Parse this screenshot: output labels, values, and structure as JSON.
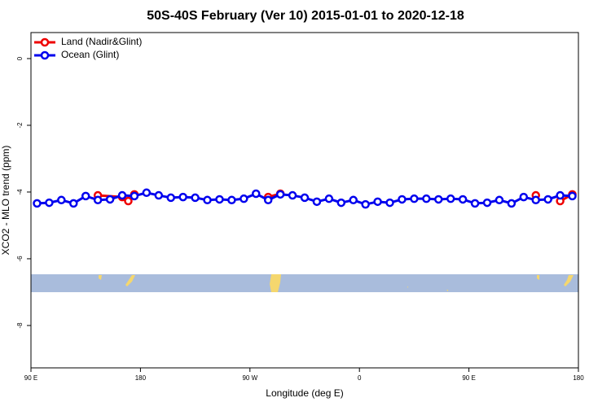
{
  "chart_data": {
    "type": "line",
    "title": "50S-40S February (Ver 10)   2015-01-01 to 2020-12-18",
    "x_label": "Longitude (deg E)",
    "y_label": "XCO2 - MLO trend (ppm)",
    "xlim": [
      90,
      540
    ],
    "xticks": [
      {
        "value": 90,
        "label": "90 E"
      },
      180,
      {
        "value": 270,
        "label": "90 W"
      },
      {
        "value": 360,
        "label": "0"
      },
      {
        "value": 450,
        "label": "90 E"
      },
      {
        "value": 540,
        "label": "180"
      }
    ],
    "ylim": [
      -9.27,
      0.78
    ],
    "yticks": [
      0,
      -2,
      -4,
      -6,
      -8
    ],
    "legend": "top-left",
    "series": [
      {
        "name": "Land (Nadir&Glint)",
        "color": "#ee0000",
        "x": [
          145,
          165,
          170,
          175,
          null,
          285,
          295,
          null,
          505,
          null,
          525,
          535
        ],
        "values": [
          -4.1,
          -4.15,
          -4.27,
          -4.07,
          null,
          -4.15,
          -4.05,
          null,
          -4.1,
          null,
          -4.27,
          -4.07
        ]
      },
      {
        "name": "Ocean (Glint)",
        "color": "#0000ee",
        "x": [
          95,
          105,
          115,
          125,
          135,
          145,
          155,
          165,
          175,
          185,
          195,
          205,
          215,
          225,
          235,
          245,
          255,
          265,
          275,
          285,
          295,
          305,
          315,
          325,
          335,
          345,
          355,
          365,
          375,
          385,
          395,
          405,
          415,
          425,
          435,
          445,
          455,
          465,
          475,
          485,
          495,
          505,
          515,
          525,
          535
        ],
        "values": [
          -4.34,
          -4.32,
          -4.24,
          -4.34,
          -4.12,
          -4.24,
          -4.22,
          -4.1,
          -4.12,
          -4.02,
          -4.1,
          -4.17,
          -4.15,
          -4.17,
          -4.24,
          -4.22,
          -4.24,
          -4.2,
          -4.05,
          -4.24,
          -4.07,
          -4.1,
          -4.17,
          -4.29,
          -4.2,
          -4.32,
          -4.24,
          -4.37,
          -4.29,
          -4.32,
          -4.22,
          -4.2,
          -4.2,
          -4.22,
          -4.2,
          -4.22,
          -4.34,
          -4.32,
          -4.24,
          -4.34,
          -4.15,
          -4.24,
          -4.22,
          -4.1,
          -4.12
        ]
      }
    ]
  }
}
